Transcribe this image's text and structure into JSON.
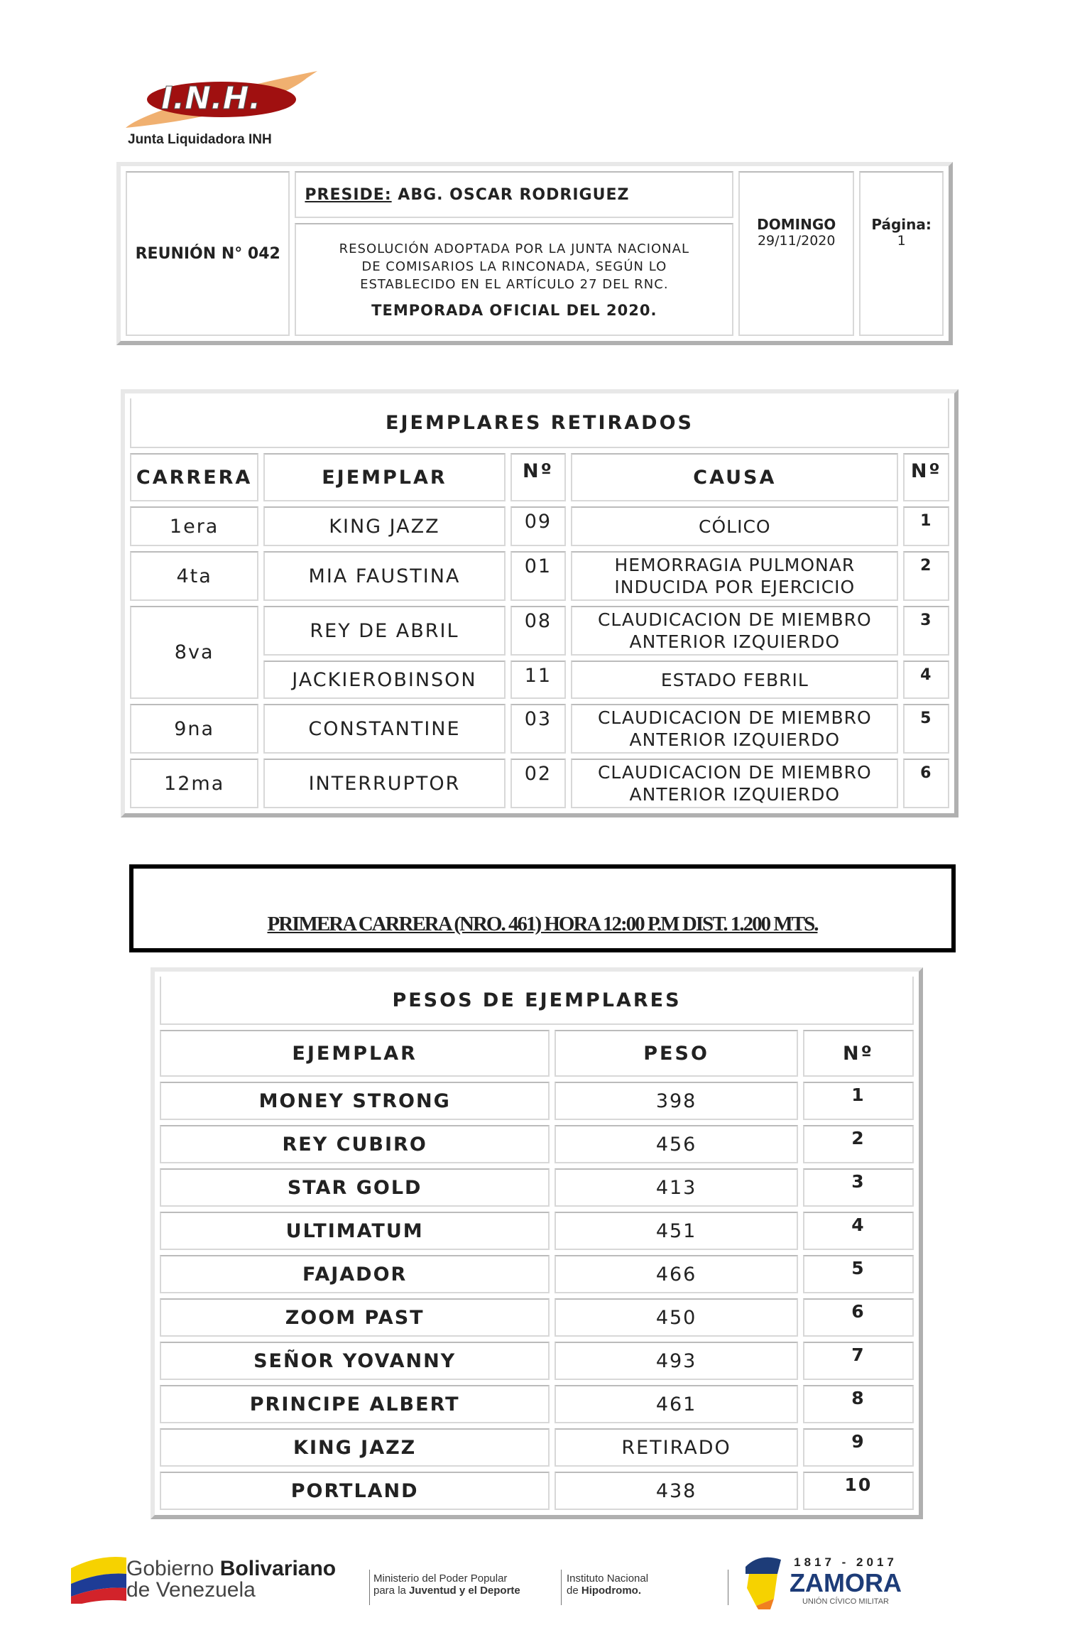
{
  "header": {
    "logo_text": "I.N.H.",
    "org": "Junta Liquidadora INH",
    "reunion": "REUNIÓN N° 042",
    "preside_label": "PRESIDE:",
    "preside_name": " ABG. OSCAR RODRIGUEZ",
    "resolution_lines": [
      "RESOLUCIÓN ADOPTADA POR LA JUNTA NACIONAL",
      "DE COMISARIOS LA RINCONADA, SEGÚN LO",
      "ESTABLECIDO EN EL ARTÍCULO 27 DEL RNC."
    ],
    "season": "TEMPORADA OFICIAL DEL 2020.",
    "day": "DOMINGO",
    "date": "29/11/2020",
    "page_label": "Página:",
    "page": "1"
  },
  "retired": {
    "title": "EJEMPLARES RETIRADOS",
    "columns": [
      "CARRERA",
      "EJEMPLAR",
      "Nº",
      "CAUSA",
      "Nº"
    ],
    "rows": [
      {
        "race": "1era",
        "horse": "KING JAZZ",
        "no": "09",
        "cause": [
          "CÓLICO"
        ],
        "idx": "1"
      },
      {
        "race": "4ta",
        "horse": "MIA FAUSTINA",
        "no": "01",
        "cause": [
          "HEMORRAGIA PULMONAR",
          "INDUCIDA POR EJERCICIO"
        ],
        "idx": "2"
      },
      {
        "race": "8va",
        "horse": "REY DE ABRIL",
        "no": "08",
        "cause": [
          "CLAUDICACION DE MIEMBRO",
          "ANTERIOR IZQUIERDO"
        ],
        "idx": "3"
      },
      {
        "race": "8va",
        "horse": "JACKIEROBINSON",
        "no": "11",
        "cause": [
          "ESTADO FEBRIL"
        ],
        "idx": "4"
      },
      {
        "race": "9na",
        "horse": "CONSTANTINE",
        "no": "03",
        "cause": [
          "CLAUDICACION DE MIEMBRO",
          "ANTERIOR IZQUIERDO"
        ],
        "idx": "5"
      },
      {
        "race": "12ma",
        "horse": "INTERRUPTOR",
        "no": "02",
        "cause": [
          "CLAUDICACION DE MIEMBRO",
          "ANTERIOR IZQUIERDO"
        ],
        "idx": "6"
      }
    ]
  },
  "race_title": "PRIMERA CARRERA (NRO. 461) HORA 12:00 P.M DIST. 1.200 MTS.",
  "weights": {
    "title": "PESOS DE EJEMPLARES",
    "columns": [
      "EJEMPLAR",
      "PESO",
      "Nº"
    ],
    "rows": [
      {
        "horse": "MONEY STRONG",
        "weight": "398",
        "no": "1"
      },
      {
        "horse": "REY CUBIRO",
        "weight": "456",
        "no": "2"
      },
      {
        "horse": "STAR GOLD",
        "weight": "413",
        "no": "3"
      },
      {
        "horse": "ULTIMATUM",
        "weight": "451",
        "no": "4"
      },
      {
        "horse": "FAJADOR",
        "weight": "466",
        "no": "5"
      },
      {
        "horse": "ZOOM PAST",
        "weight": "450",
        "no": "6"
      },
      {
        "horse": "SEÑOR YOVANNY",
        "weight": "493",
        "no": "7"
      },
      {
        "horse": "PRINCIPE ALBERT",
        "weight": "461",
        "no": "8"
      },
      {
        "horse": "KING JAZZ",
        "weight": "RETIRADO",
        "no": "9"
      },
      {
        "horse": "PORTLAND",
        "weight": "438",
        "no": "10"
      }
    ]
  },
  "footer": {
    "gob_1": "Gobierno ",
    "gob_2": "Bolivariano",
    "gob_3": "de Venezuela",
    "min_1": "Ministerio del Poder Popular",
    "min_2": "para la ",
    "min_3": "Juventud y el Deporte",
    "inst_1": "Instituto Nacional",
    "inst_2": "de ",
    "inst_3": "Hipodromo.",
    "zamora_years": "1817 - 2017",
    "zamora": "ZAMORA",
    "zamora_sub": "UNIÓN CÍVICO MILITAR"
  },
  "colors": {
    "logo_red": "#a01010",
    "logo_orange": "#f0b070",
    "zamora_blue": "#1d3c78"
  }
}
